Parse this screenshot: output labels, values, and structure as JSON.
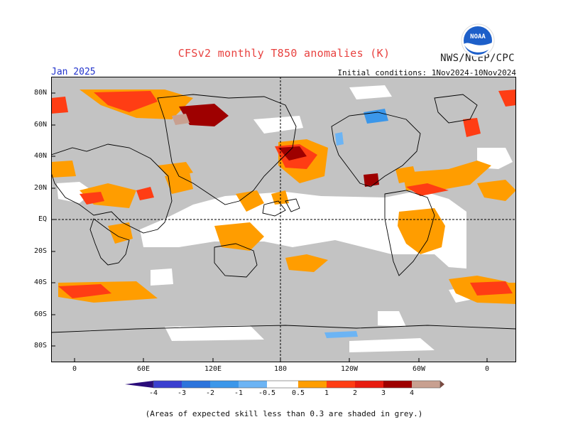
{
  "title": "CFSv2 monthly T850 anomalies (K)",
  "agency": "NWS/NCEP/CPC",
  "logo_text": "NOAA",
  "valid_month": "Jan 2025",
  "initial_conditions": "Initial conditions: 1Nov2024-10Nov2024",
  "footnote": "(Areas of expected skill less than 0.3 are shaded in grey.)",
  "map": {
    "latitude_labels": [
      "80N",
      "60N",
      "40N",
      "20N",
      "EQ",
      "20S",
      "40S",
      "60S",
      "80S"
    ],
    "longitude_labels": [
      "0",
      "60E",
      "120E",
      "180",
      "120W",
      "60W",
      "0"
    ],
    "background_color": "#c3c3c3"
  },
  "colorbar": {
    "tick_labels": [
      "-4",
      "-3",
      "-2",
      "-1",
      "-0.5",
      "0.5",
      "1",
      "2",
      "3",
      "4"
    ],
    "colors": {
      "below_-4": "#2a0c7a",
      "-4_to_-3": "#3a3fd0",
      "-3_to_-2": "#2d74dc",
      "-2_to_-1": "#3b97ea",
      "-1_to_-0.5": "#6cb4f4",
      "-0.5_to_0.5": "#ffffff",
      "0.5_to_1": "#ff9d00",
      "1_to_2": "#ff3d14",
      "2_to_3": "#e81c10",
      "3_to_4": "#9e0000",
      "4_to_5": "#c8a090",
      "above_5": "#7a4a40"
    }
  }
}
